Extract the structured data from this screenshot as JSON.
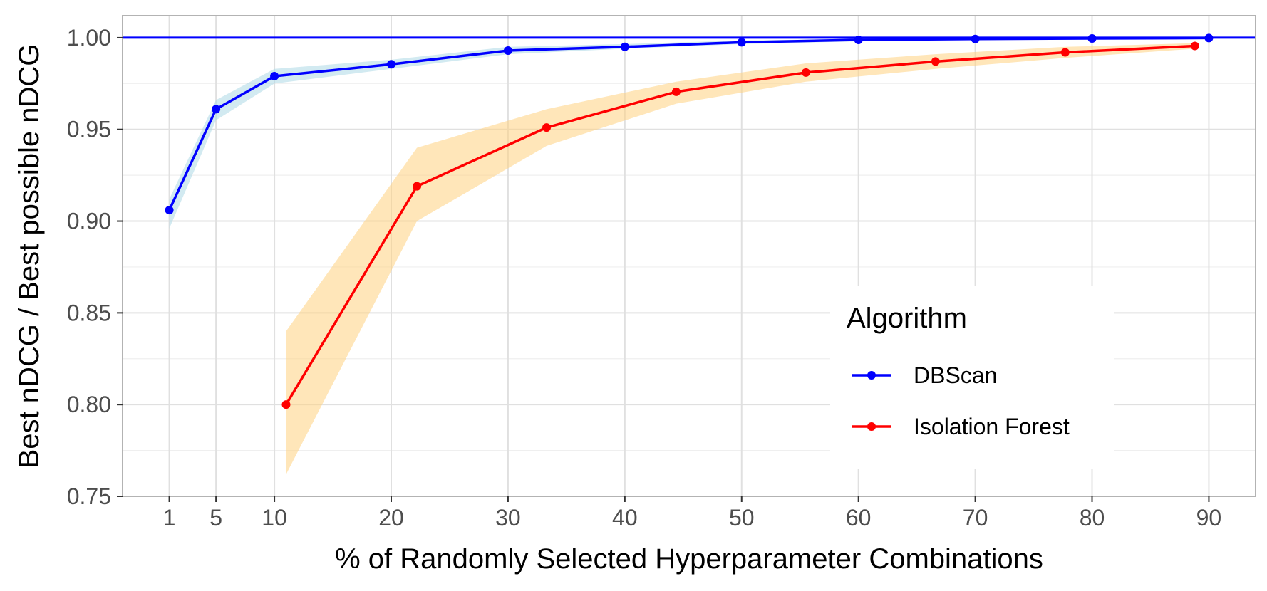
{
  "chart_data": {
    "type": "line",
    "title": "",
    "xlabel": "% of Randomly Selected Hyperparameter Combinations",
    "ylabel": "Best nDCG / Best possible nDCG",
    "xlim": [
      -3,
      94
    ],
    "ylim": [
      0.75,
      1.012
    ],
    "x_ticks": [
      1,
      5,
      10,
      20,
      30,
      40,
      50,
      60,
      70,
      80,
      90
    ],
    "y_ticks": [
      0.75,
      0.8,
      0.85,
      0.9,
      0.95,
      1.0
    ],
    "y_tick_labels": [
      "0.75",
      "0.80",
      "0.85",
      "0.90",
      "0.95",
      "1.00"
    ],
    "grid": true,
    "reference_line": {
      "y": 1.0,
      "color": "#0000ff"
    },
    "legend": {
      "title": "Algorithm",
      "position": "bottom-right"
    },
    "series": [
      {
        "name": "DBScan",
        "color": "#0000ff",
        "band_color": "#add8e6",
        "x": [
          1,
          5,
          10,
          20,
          30,
          40,
          50,
          60,
          70,
          80,
          90
        ],
        "y": [
          0.906,
          0.961,
          0.979,
          0.9855,
          0.993,
          0.995,
          0.9975,
          0.9988,
          0.9993,
          0.9996,
          0.9998
        ],
        "lower": [
          0.896,
          0.955,
          0.975,
          0.983,
          0.991,
          0.994,
          0.9965,
          0.998,
          0.9988,
          0.9993,
          0.9996
        ],
        "upper": [
          0.912,
          0.966,
          0.983,
          0.988,
          0.995,
          0.9965,
          0.9985,
          0.9993,
          0.9997,
          0.9999,
          1.0
        ]
      },
      {
        "name": "Isolation Forest",
        "color": "#ff0000",
        "band_color": "#ffd27f",
        "x": [
          11,
          22.2,
          33.3,
          44.4,
          55.5,
          66.6,
          77.7,
          88.8
        ],
        "y": [
          0.8,
          0.919,
          0.951,
          0.9705,
          0.981,
          0.987,
          0.992,
          0.9955
        ],
        "lower": [
          0.762,
          0.9,
          0.941,
          0.964,
          0.976,
          0.983,
          0.989,
          0.994
        ],
        "upper": [
          0.84,
          0.94,
          0.961,
          0.976,
          0.986,
          0.991,
          0.995,
          0.997
        ]
      }
    ]
  }
}
